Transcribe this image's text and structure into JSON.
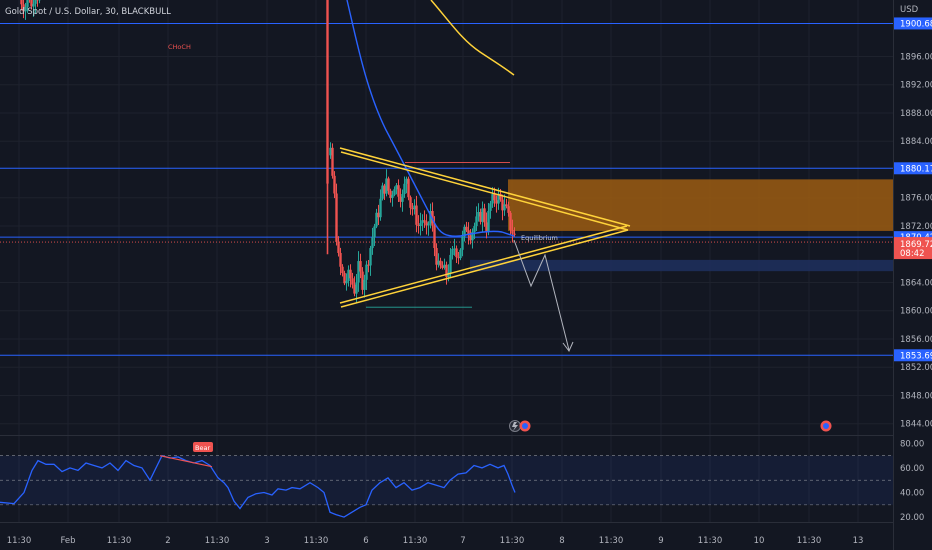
{
  "chart_data": {
    "type": "candlestick",
    "title": "Gold Spot / U.S. Dollar, 30, BLACKBULL",
    "currency": "USD",
    "price_ticks": [
      "1896.00",
      "1892.00",
      "1888.00",
      "1884.00",
      "1876.00",
      "1872.00",
      "1864.00",
      "1860.00",
      "1856.00",
      "1852.00",
      "1848.00",
      "1844.00"
    ],
    "price_range": [
      1842.4,
      1904.0
    ],
    "time_labels": [
      "11:30",
      "Feb",
      "11:30",
      "2",
      "11:30",
      "3",
      "11:30",
      "6",
      "11:30",
      "7",
      "11:30",
      "8",
      "11:30",
      "9",
      "11:30",
      "10",
      "11:30",
      "13"
    ],
    "level_badges": [
      {
        "label": "1900.68",
        "price": 1900.68,
        "kind": "line"
      },
      {
        "label": "1880.17",
        "price": 1880.17,
        "kind": "line"
      },
      {
        "label": "1870.42",
        "price": 1870.42,
        "kind": "line"
      },
      {
        "label": "1853.69",
        "price": 1853.69,
        "kind": "line"
      }
    ],
    "last_price": {
      "label": "1869.72",
      "countdown": "08:42",
      "price": 1869.72
    },
    "annotations": {
      "choch": "CHoCH",
      "equilibrium": "Equilibrium",
      "bear": "Bear"
    },
    "supply_zone": {
      "top": 1878.6,
      "bottom": 1871.3,
      "color": "#9c5c12"
    },
    "demand_zone": {
      "top": 1867.2,
      "bottom": 1865.6,
      "color": "#1e2f5b"
    },
    "rsi": {
      "ticks": [
        "80.00",
        "60.00",
        "40.00",
        "20.00"
      ],
      "upper": 70,
      "middle": 50,
      "lower": 30,
      "range": [
        16,
        86
      ]
    },
    "colors": {
      "up": "#26a69a",
      "down": "#ef5350",
      "level": "#2962ff",
      "trend": "#ffd33a",
      "ma": "#2962ff",
      "rsi": "#2962ff",
      "arrow": "#b2b5be"
    }
  }
}
